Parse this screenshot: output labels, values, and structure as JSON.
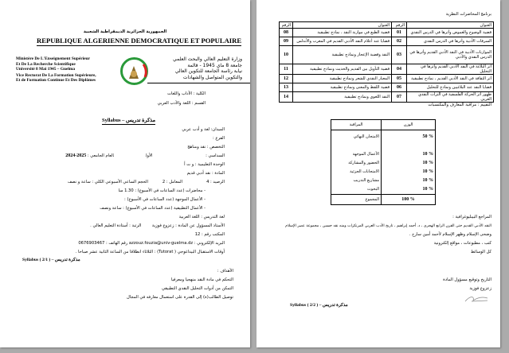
{
  "page1": {
    "header_ar": "الجمهورية الجزائرية الديمقراطية الشعبية",
    "header_fr": "REPUBLIQUE ALGERIENNE DEMOCRATIQUE  ET POPULAIRE",
    "fr_block": [
      "Ministère De L'Enseignement Supérieur",
      "Et De La Recherche Scientifique",
      "Université 8 Mai 1945 – Guelma",
      "Vice Rectorat De La Formation Supérieure,",
      "Et de Formation Continue  Et Des Diplômes"
    ],
    "ar_block": [
      "وزارة التعليم العالي والبحث العلمي",
      "جامعة 8 ماي 1945 - قالمة",
      "نيابة رئاسة الجامعة للتكوين العالي",
      "والتكوين المتواصل والشهادات"
    ],
    "faculty": "الكلية : الآداب واللغات",
    "department": "القسم : اللغة والأدب العربي",
    "syllabus_title": "مذكرة تدريس – Syllabus",
    "fields": [
      "الميدان: لغة و أدب عربي",
      "الفرع :",
      "التخصص : نقد ومناهج",
      "السداسي :",
      "الوحدة التعليمية : و ت أ",
      "المادة : نقد أدبي قديم",
      "الرصيد : 4",
      "- محاضرات (عدد الساعات في الأسبوع) : 1.30 سا",
      "- الأعمال الموجهة (عدد الساعات في الأسبوع) :",
      "- الأعمال التطبيقية (عدد الساعات في الأسبوع) : ساعة ونصف",
      "لغة التدريس : اللغة العربية",
      "الأستاذ المسؤول عن المادة : زعزوع فوزية",
      "المكتب رقم : 12"
    ],
    "semester_value": "الأول",
    "year_label": "العام الجامعي :",
    "year_value": "2025-2024",
    "coef": "المعامل : 2",
    "weekly": "الحجم الساعي الأسبوعي الكلي : ساعة و نصف",
    "rank": "الرتبة : أستاذة التعليم العالي .",
    "email_line": "البريد الإلكتروني : azzouz.fouzia@univ-guelma.dz رقم الهاتف : 0676903467",
    "tutorat": "أوقات الاستقبال البيداغوجي ( Tutorat) : الثلاثاء انطلاقا من الساعة الثانية عشر صباحا .",
    "footer": "مذكرة تدريس – Syllabus ( 2/1 )",
    "objectives_title": "الأهداف :",
    "objectives": [
      "التحكم في مادة النقد منهجيا ومعرفيا",
      "التمكن من أدوات التحليل النقدي التطبيقي",
      "توصيل الطالب(ة) إلى القدرة على استعمال معارفه في المجال"
    ]
  },
  "page2": {
    "program_title": "برنامج المحاضرات النظرية",
    "table_headers": {
      "num": "الرقم",
      "topic": "العنوان"
    },
    "lectures": [
      {
        "num": "01",
        "topic": "قضية الوضوح والغموض وأثرها في الدرس النقدي"
      },
      {
        "num": "02",
        "topic": "السرقات الأدبية وأثرها في الدرس النقدي"
      },
      {
        "num": "03",
        "topic": "الموازنات الأدبية في النقد الأدبي القديم وأثرها في الدرس النقدي والأدبي"
      },
      {
        "num": "04",
        "topic": "أثر البلاغة في النقد الأدبي القديم وأثرها في التحليل"
      },
      {
        "num": "05",
        "topic": "أثر الثقافة في النقد الأدبي القديم ، نماذج تطبيقية"
      },
      {
        "num": "06",
        "topic": "قضايا النقد عند البلاغيين ونماذج للتحليل"
      },
      {
        "num": "07",
        "topic": "ظهور أثر الحركة الفلسفية في التراث النقدي العربي"
      },
      {
        "num": "08",
        "topic": "قضية الطبع في موازنة النقد ، نماذج تطبيقية"
      },
      {
        "num": "09",
        "topic": "قضايا عند أعلام النقد الأدبي القديم في المغرب والأندلس"
      },
      {
        "num": "10",
        "topic": "النقد وقضية الإعجاز ونماذج تطبيقية"
      },
      {
        "num": "11",
        "topic": "قضية التأويل بين القديم والحديث ونماذج تطبيقية"
      },
      {
        "num": "12",
        "topic": "المعيار النقدي للشعر ونماذج تطبيقية"
      },
      {
        "num": "13",
        "topic": "قضية اللفظ والمعنى ونماذج تطبيقية"
      },
      {
        "num": "14",
        "topic": "النقد اللغوي ونماذج تطبيقية"
      }
    ],
    "evaluation_title": "التقييم : مراقبة المعارف والمكتسبات",
    "eval_headers": {
      "item": "المراقبة",
      "weight": "الوزن"
    },
    "evaluation": [
      {
        "item": "الامتحان النهائي",
        "weight": "50 %"
      },
      {
        "item": "الأعمال الموجهة",
        "weight": "10 %"
      },
      {
        "item": "الحضور والمشاركة",
        "weight": "10 %"
      },
      {
        "item": "الامتحانات الجزئية",
        "weight": "10 %"
      },
      {
        "item": "مشاريع التدريب",
        "weight": "10 %"
      },
      {
        "item": "البحوث",
        "weight": "10 %"
      }
    ],
    "total_label": "المجموع",
    "total_value": "100 %",
    "references_title": "المراجع البيبليوغرافية :",
    "references": [
      "النقد الأدبي القديم حتى القرن الرابع الهجري ، د. أحمد إبراهيم ، تاريخ الأدب العربي المرتكزات ومنه نقد حسين ، مجموعة عصر الإسلام",
      "وضحى الإسلام وظهر الإسلام لأحمد أمين سارح .",
      "كتب ، مطبوعات ، مواقع إلكترونية",
      "كل الوسائط"
    ],
    "signature_label": "التاريخ وتوقيع مسؤول المادة",
    "signatory": "زعزوع فوزية",
    "footer": "مذكرة تدريس – Syllabus ( 2/2 )"
  }
}
